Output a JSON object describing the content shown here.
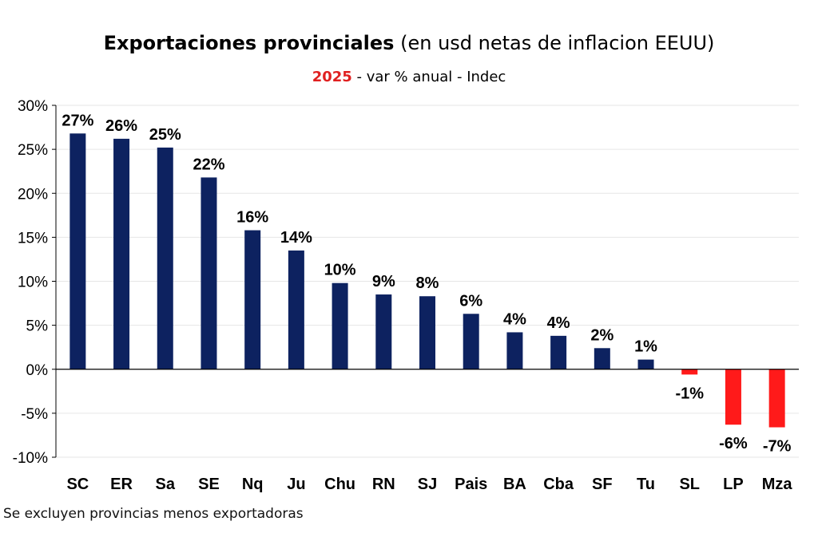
{
  "header": {
    "title_main": "Exportaciones provinciales",
    "title_rest": "(en usd netas de inflacion EEUU)",
    "subtitle_year": "2025",
    "subtitle_rest": "- var % anual - Indec"
  },
  "footer": {
    "note": "Se excluyen provincias menos exportadoras"
  },
  "chart_data": {
    "type": "bar",
    "categories": [
      "SC",
      "ER",
      "Sa",
      "SE",
      "Nq",
      "Ju",
      "Chu",
      "RN",
      "SJ",
      "Pais",
      "BA",
      "Cba",
      "SF",
      "Tu",
      "SL",
      "LP",
      "Mza"
    ],
    "values": [
      26.8,
      26.2,
      25.2,
      21.8,
      15.8,
      13.5,
      9.8,
      8.5,
      8.3,
      6.3,
      4.2,
      3.8,
      2.4,
      1.1,
      -0.6,
      -6.3,
      -6.6
    ],
    "data_labels": [
      "27%",
      "26%",
      "25%",
      "22%",
      "16%",
      "14%",
      "10%",
      "9%",
      "8%",
      "6%",
      "4%",
      "4%",
      "2%",
      "1%",
      "-1%",
      "-6%",
      "-7%"
    ],
    "y_ticks": [
      30,
      25,
      20,
      15,
      10,
      5,
      0,
      -5,
      -10
    ],
    "y_tick_labels": [
      "30%",
      "25%",
      "20%",
      "15%",
      "10%",
      "5%",
      "0%",
      "-5%",
      "-10%"
    ],
    "ylim": [
      -10,
      30
    ],
    "grid": true,
    "legend": "none",
    "colors": {
      "positive": "#0d2260",
      "negative": "#ff1a1a"
    }
  }
}
